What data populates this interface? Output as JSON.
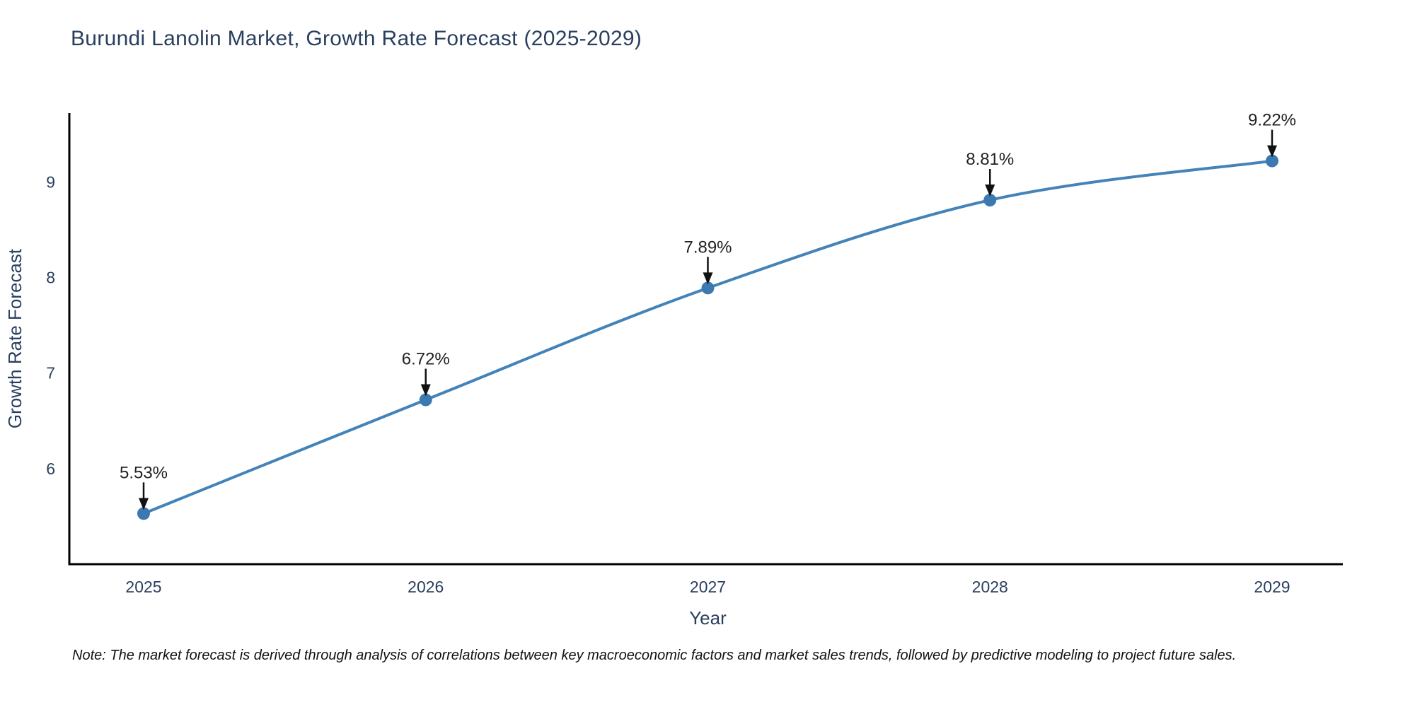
{
  "note": "Note: The market forecast is derived through analysis of correlations between key macroeconomic factors and market sales trends, followed by predictive modeling to project future sales.",
  "chart_data": {
    "type": "line",
    "title": "Burundi Lanolin Market, Growth Rate Forecast (2025-2029)",
    "xlabel": "Year",
    "ylabel": "Growth Rate Forecast",
    "x": [
      2025,
      2026,
      2027,
      2028,
      2029
    ],
    "values": [
      5.53,
      6.72,
      7.89,
      8.81,
      9.22
    ],
    "point_labels": [
      "5.53%",
      "6.72%",
      "7.89%",
      "8.81%",
      "9.22%"
    ],
    "yticks": [
      6,
      7,
      8,
      9
    ],
    "ylim": [
      5.0,
      9.72
    ],
    "grid": false,
    "legend": "none",
    "line_shape": "spline",
    "line_color": "#4383b8",
    "marker_color": "#3c79b0",
    "axis_color": "#000000",
    "label_color": "#2a3f5f",
    "annotation_color": "#111111",
    "background_color": "#ffffff"
  }
}
